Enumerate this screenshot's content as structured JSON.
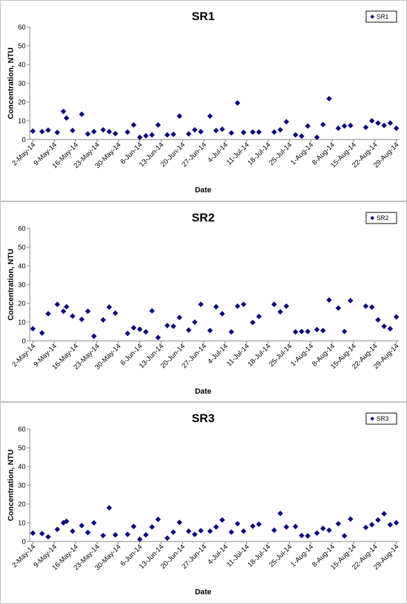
{
  "colors": {
    "marker": "#0a0a7a",
    "axis": "#808080"
  },
  "chart_data": [
    {
      "type": "scatter",
      "title": "SR1",
      "xlabel": "Date",
      "ylabel": "Concentration, NTU",
      "ylim": [
        0,
        60
      ],
      "yticks": [
        "0",
        "10",
        "20",
        "30",
        "40",
        "50",
        "60"
      ],
      "xtick_labels": [
        "2-May-14",
        "9-May-14",
        "16-May-14",
        "23-May-14",
        "30-May-14",
        "6-Jun-14",
        "13-Jun-14",
        "20-Jun-14",
        "27-Jun-14",
        "4-Jul-14",
        "11-Jul-14",
        "18-Jul-14",
        "25-Jul-14",
        "1-Aug-14",
        "8-Aug-14",
        "15-Aug-14",
        "22-Aug-14",
        "29-Aug-14"
      ],
      "legend_position": "top-right",
      "series": [
        {
          "name": "SR1",
          "points": [
            [
              "2014-05-02",
              4.5
            ],
            [
              "2014-05-05",
              4.2
            ],
            [
              "2014-05-07",
              5.0
            ],
            [
              "2014-05-10",
              3.8
            ],
            [
              "2014-05-12",
              15.0
            ],
            [
              "2014-05-13",
              11.5
            ],
            [
              "2014-05-15",
              4.8
            ],
            [
              "2014-05-18",
              13.5
            ],
            [
              "2014-05-20",
              3.0
            ],
            [
              "2014-05-22",
              4.2
            ],
            [
              "2014-05-25",
              5.2
            ],
            [
              "2014-05-27",
              4.2
            ],
            [
              "2014-05-29",
              3.2
            ],
            [
              "2014-06-02",
              4.0
            ],
            [
              "2014-06-04",
              7.8
            ],
            [
              "2014-06-06",
              1.2
            ],
            [
              "2014-06-08",
              2.0
            ],
            [
              "2014-06-10",
              2.5
            ],
            [
              "2014-06-12",
              7.8
            ],
            [
              "2014-06-15",
              2.5
            ],
            [
              "2014-06-17",
              2.8
            ],
            [
              "2014-06-19",
              12.5
            ],
            [
              "2014-06-22",
              3.0
            ],
            [
              "2014-06-24",
              5.2
            ],
            [
              "2014-06-26",
              4.2
            ],
            [
              "2014-06-29",
              12.5
            ],
            [
              "2014-07-01",
              4.8
            ],
            [
              "2014-07-03",
              5.5
            ],
            [
              "2014-07-06",
              3.5
            ],
            [
              "2014-07-08",
              19.5
            ],
            [
              "2014-07-10",
              3.8
            ],
            [
              "2014-07-13",
              4.0
            ],
            [
              "2014-07-15",
              4.0
            ],
            [
              "2014-07-20",
              4.0
            ],
            [
              "2014-07-22",
              5.2
            ],
            [
              "2014-07-24",
              9.5
            ],
            [
              "2014-07-27",
              2.5
            ],
            [
              "2014-07-29",
              1.8
            ],
            [
              "2014-07-31",
              7.2
            ],
            [
              "2014-08-03",
              1.2
            ],
            [
              "2014-08-05",
              8.0
            ],
            [
              "2014-08-07",
              21.8
            ],
            [
              "2014-08-10",
              6.0
            ],
            [
              "2014-08-12",
              7.2
            ],
            [
              "2014-08-14",
              7.5
            ],
            [
              "2014-08-19",
              6.5
            ],
            [
              "2014-08-21",
              10.0
            ],
            [
              "2014-08-23",
              8.8
            ],
            [
              "2014-08-25",
              7.5
            ],
            [
              "2014-08-27",
              8.8
            ],
            [
              "2014-08-29",
              6.0
            ]
          ]
        }
      ]
    },
    {
      "type": "scatter",
      "title": "SR2",
      "xlabel": "Date",
      "ylabel": "Concentration, NTU",
      "ylim": [
        0,
        60
      ],
      "yticks": [
        "0",
        "10",
        "20",
        "30",
        "40",
        "50",
        "60"
      ],
      "xtick_labels": [
        "2-May-14",
        "9-May-14",
        "16-May-14",
        "23-May-14",
        "30-May-14",
        "6-Jun-14",
        "13-Jun-14",
        "20-Jun-14",
        "27-Jun-14",
        "4-Jul-14",
        "11-Jul-14",
        "18-Jul-14",
        "25-Jul-14",
        "1-Aug-14",
        "8-Aug-14",
        "15-Aug-14",
        "22-Aug-14",
        "29-Aug-14"
      ],
      "legend_position": "top-right",
      "series": [
        {
          "name": "SR2",
          "points": [
            [
              "2014-05-02",
              6.5
            ],
            [
              "2014-05-05",
              4.2
            ],
            [
              "2014-05-07",
              14.5
            ],
            [
              "2014-05-10",
              19.5
            ],
            [
              "2014-05-12",
              15.8
            ],
            [
              "2014-05-13",
              18.2
            ],
            [
              "2014-05-15",
              13.2
            ],
            [
              "2014-05-18",
              11.5
            ],
            [
              "2014-05-20",
              15.8
            ],
            [
              "2014-05-22",
              2.5
            ],
            [
              "2014-05-25",
              11.2
            ],
            [
              "2014-05-27",
              18.0
            ],
            [
              "2014-05-29",
              14.8
            ],
            [
              "2014-06-02",
              4.0
            ],
            [
              "2014-06-04",
              7.0
            ],
            [
              "2014-06-06",
              6.2
            ],
            [
              "2014-06-08",
              4.8
            ],
            [
              "2014-06-10",
              16.0
            ],
            [
              "2014-06-12",
              1.8
            ],
            [
              "2014-06-15",
              8.2
            ],
            [
              "2014-06-17",
              7.8
            ],
            [
              "2014-06-19",
              12.5
            ],
            [
              "2014-06-22",
              5.8
            ],
            [
              "2014-06-24",
              10.0
            ],
            [
              "2014-06-26",
              19.5
            ],
            [
              "2014-06-29",
              5.5
            ],
            [
              "2014-07-01",
              18.2
            ],
            [
              "2014-07-03",
              14.5
            ],
            [
              "2014-07-06",
              4.8
            ],
            [
              "2014-07-08",
              18.5
            ],
            [
              "2014-07-10",
              19.5
            ],
            [
              "2014-07-13",
              9.8
            ],
            [
              "2014-07-15",
              13.0
            ],
            [
              "2014-07-20",
              19.5
            ],
            [
              "2014-07-22",
              15.5
            ],
            [
              "2014-07-24",
              18.5
            ],
            [
              "2014-07-27",
              4.8
            ],
            [
              "2014-07-29",
              5.0
            ],
            [
              "2014-07-31",
              5.0
            ],
            [
              "2014-08-03",
              6.0
            ],
            [
              "2014-08-05",
              5.5
            ],
            [
              "2014-08-07",
              21.8
            ],
            [
              "2014-08-10",
              17.5
            ],
            [
              "2014-08-12",
              5.0
            ],
            [
              "2014-08-14",
              21.5
            ],
            [
              "2014-08-19",
              18.5
            ],
            [
              "2014-08-21",
              18.0
            ],
            [
              "2014-08-23",
              11.2
            ],
            [
              "2014-08-25",
              7.8
            ],
            [
              "2014-08-27",
              6.5
            ],
            [
              "2014-08-29",
              12.8
            ]
          ]
        }
      ]
    },
    {
      "type": "scatter",
      "title": "SR3",
      "xlabel": "Date",
      "ylabel": "Concentration, NTU",
      "ylim": [
        0,
        60
      ],
      "yticks": [
        "0",
        "10",
        "20",
        "30",
        "40",
        "50",
        "60"
      ],
      "xtick_labels": [
        "2-May-14",
        "9-May-14",
        "16-May-14",
        "23-May-14",
        "30-May-14",
        "6-Jun-14",
        "13-Jun-14",
        "20-Jun-14",
        "27-Jun-14",
        "4-Jul-14",
        "11-Jul-14",
        "18-Jul-14",
        "25-Jul-14",
        "1-Aug-14",
        "8-Aug-14",
        "15-Aug-14",
        "22-Aug-14",
        "29-Aug-14"
      ],
      "legend_position": "top-right",
      "series": [
        {
          "name": "SR3",
          "points": [
            [
              "2014-05-02",
              4.5
            ],
            [
              "2014-05-05",
              4.2
            ],
            [
              "2014-05-07",
              2.5
            ],
            [
              "2014-05-10",
              6.5
            ],
            [
              "2014-05-12",
              10.0
            ],
            [
              "2014-05-13",
              10.8
            ],
            [
              "2014-05-15",
              5.5
            ],
            [
              "2014-05-18",
              8.5
            ],
            [
              "2014-05-20",
              4.8
            ],
            [
              "2014-05-22",
              10.0
            ],
            [
              "2014-05-25",
              3.2
            ],
            [
              "2014-05-27",
              18.0
            ],
            [
              "2014-05-29",
              3.5
            ],
            [
              "2014-06-02",
              3.8
            ],
            [
              "2014-06-04",
              8.0
            ],
            [
              "2014-06-06",
              1.2
            ],
            [
              "2014-06-08",
              3.5
            ],
            [
              "2014-06-10",
              7.8
            ],
            [
              "2014-06-12",
              11.8
            ],
            [
              "2014-06-15",
              1.8
            ],
            [
              "2014-06-17",
              5.0
            ],
            [
              "2014-06-19",
              10.2
            ],
            [
              "2014-06-22",
              5.5
            ],
            [
              "2014-06-24",
              3.8
            ],
            [
              "2014-06-26",
              5.8
            ],
            [
              "2014-06-29",
              5.5
            ],
            [
              "2014-07-01",
              7.8
            ],
            [
              "2014-07-03",
              11.5
            ],
            [
              "2014-07-06",
              5.0
            ],
            [
              "2014-07-08",
              9.5
            ],
            [
              "2014-07-10",
              5.5
            ],
            [
              "2014-07-13",
              8.2
            ],
            [
              "2014-07-15",
              9.2
            ],
            [
              "2014-07-20",
              6.0
            ],
            [
              "2014-07-22",
              15.0
            ],
            [
              "2014-07-24",
              7.8
            ],
            [
              "2014-07-27",
              8.0
            ],
            [
              "2014-07-29",
              3.2
            ],
            [
              "2014-07-31",
              3.0
            ],
            [
              "2014-08-03",
              4.5
            ],
            [
              "2014-08-05",
              7.0
            ],
            [
              "2014-08-07",
              6.0
            ],
            [
              "2014-08-10",
              9.5
            ],
            [
              "2014-08-12",
              3.0
            ],
            [
              "2014-08-14",
              12.0
            ],
            [
              "2014-08-19",
              7.5
            ],
            [
              "2014-08-21",
              9.0
            ],
            [
              "2014-08-23",
              11.5
            ],
            [
              "2014-08-25",
              14.8
            ],
            [
              "2014-08-27",
              9.0
            ],
            [
              "2014-08-29",
              10.0
            ]
          ]
        }
      ]
    }
  ]
}
